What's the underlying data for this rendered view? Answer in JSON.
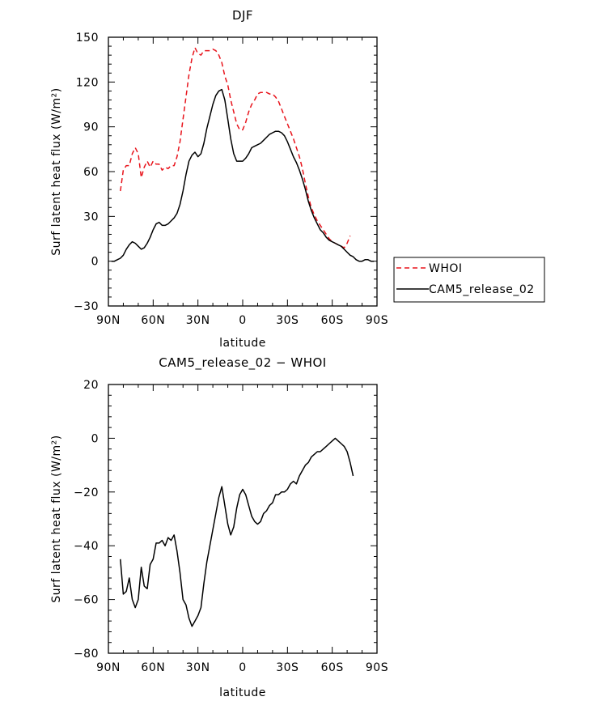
{
  "chart_data": [
    {
      "type": "line",
      "title": "DJF",
      "xlabel": "latitude",
      "ylabel": "Surf latent heat flux (W/m²)",
      "xlim": [
        90,
        -90
      ],
      "ylim": [
        -30,
        150
      ],
      "x_ticks": [
        {
          "value": 90,
          "label": "90N"
        },
        {
          "value": 60,
          "label": "60N"
        },
        {
          "value": 30,
          "label": "30N"
        },
        {
          "value": 0,
          "label": "0"
        },
        {
          "value": -30,
          "label": "30S"
        },
        {
          "value": -60,
          "label": "60S"
        },
        {
          "value": -90,
          "label": "90S"
        }
      ],
      "y_ticks": [
        -30,
        0,
        30,
        60,
        90,
        120,
        150
      ],
      "grid": false,
      "legend_position": "right",
      "series": [
        {
          "name": "WHOI",
          "color": "#e8141c",
          "dash": "dashed",
          "points": [
            [
              82,
              47
            ],
            [
              80,
              61
            ],
            [
              78,
              64
            ],
            [
              76,
              64
            ],
            [
              74,
              72
            ],
            [
              72,
              76
            ],
            [
              70,
              72
            ],
            [
              68,
              56
            ],
            [
              66,
              63
            ],
            [
              64,
              67
            ],
            [
              62,
              63
            ],
            [
              60,
              67
            ],
            [
              58,
              65
            ],
            [
              56,
              65
            ],
            [
              54,
              61
            ],
            [
              52,
              63
            ],
            [
              50,
              62
            ],
            [
              48,
              64
            ],
            [
              46,
              64
            ],
            [
              44,
              70
            ],
            [
              42,
              80
            ],
            [
              40,
              95
            ],
            [
              38,
              110
            ],
            [
              36,
              125
            ],
            [
              34,
              136
            ],
            [
              32,
              143
            ],
            [
              30,
              139
            ],
            [
              28,
              138
            ],
            [
              26,
              141
            ],
            [
              24,
              141
            ],
            [
              22,
              141
            ],
            [
              20,
              142
            ],
            [
              18,
              141
            ],
            [
              16,
              138
            ],
            [
              14,
              133
            ],
            [
              12,
              124
            ],
            [
              10,
              118
            ],
            [
              8,
              108
            ],
            [
              6,
              100
            ],
            [
              4,
              92
            ],
            [
              2,
              88
            ],
            [
              0,
              88
            ],
            [
              -2,
              93
            ],
            [
              -4,
              100
            ],
            [
              -6,
              105
            ],
            [
              -8,
              108
            ],
            [
              -10,
              112
            ],
            [
              -12,
              113
            ],
            [
              -14,
              113
            ],
            [
              -16,
              113
            ],
            [
              -18,
              112
            ],
            [
              -20,
              112
            ],
            [
              -22,
              110
            ],
            [
              -24,
              107
            ],
            [
              -26,
              102
            ],
            [
              -28,
              97
            ],
            [
              -30,
              92
            ],
            [
              -32,
              87
            ],
            [
              -34,
              82
            ],
            [
              -36,
              76
            ],
            [
              -38,
              70
            ],
            [
              -40,
              62
            ],
            [
              -42,
              52
            ],
            [
              -44,
              43
            ],
            [
              -46,
              36
            ],
            [
              -48,
              31
            ],
            [
              -50,
              27
            ],
            [
              -52,
              24
            ],
            [
              -54,
              21
            ],
            [
              -56,
              18
            ],
            [
              -58,
              15
            ],
            [
              -60,
              13
            ],
            [
              -62,
              12
            ],
            [
              -64,
              11
            ],
            [
              -66,
              10
            ],
            [
              -68,
              9
            ],
            [
              -70,
              12
            ],
            [
              -72,
              17
            ]
          ]
        },
        {
          "name": "CAM5_release_02",
          "color": "#000000",
          "dash": "solid",
          "points": [
            [
              88,
              0
            ],
            [
              86,
              0
            ],
            [
              84,
              1
            ],
            [
              82,
              2
            ],
            [
              80,
              4
            ],
            [
              78,
              8
            ],
            [
              76,
              11
            ],
            [
              74,
              13
            ],
            [
              72,
              12
            ],
            [
              70,
              10
            ],
            [
              68,
              8
            ],
            [
              66,
              9
            ],
            [
              64,
              12
            ],
            [
              62,
              16
            ],
            [
              60,
              21
            ],
            [
              58,
              25
            ],
            [
              56,
              26
            ],
            [
              54,
              24
            ],
            [
              52,
              24
            ],
            [
              50,
              25
            ],
            [
              48,
              27
            ],
            [
              46,
              29
            ],
            [
              44,
              32
            ],
            [
              42,
              38
            ],
            [
              40,
              47
            ],
            [
              38,
              58
            ],
            [
              36,
              67
            ],
            [
              34,
              71
            ],
            [
              32,
              73
            ],
            [
              30,
              70
            ],
            [
              28,
              72
            ],
            [
              26,
              79
            ],
            [
              24,
              89
            ],
            [
              22,
              97
            ],
            [
              20,
              105
            ],
            [
              18,
              111
            ],
            [
              16,
              114
            ],
            [
              14,
              115
            ],
            [
              12,
              108
            ],
            [
              10,
              95
            ],
            [
              8,
              82
            ],
            [
              6,
              72
            ],
            [
              4,
              67
            ],
            [
              2,
              67
            ],
            [
              0,
              67
            ],
            [
              -2,
              69
            ],
            [
              -4,
              72
            ],
            [
              -6,
              76
            ],
            [
              -8,
              77
            ],
            [
              -10,
              78
            ],
            [
              -12,
              79
            ],
            [
              -14,
              81
            ],
            [
              -16,
              83
            ],
            [
              -18,
              85
            ],
            [
              -20,
              86
            ],
            [
              -22,
              87
            ],
            [
              -24,
              87
            ],
            [
              -26,
              86
            ],
            [
              -28,
              84
            ],
            [
              -30,
              80
            ],
            [
              -32,
              75
            ],
            [
              -34,
              70
            ],
            [
              -36,
              66
            ],
            [
              -38,
              61
            ],
            [
              -40,
              55
            ],
            [
              -42,
              48
            ],
            [
              -44,
              40
            ],
            [
              -46,
              34
            ],
            [
              -48,
              29
            ],
            [
              -50,
              25
            ],
            [
              -52,
              21
            ],
            [
              -54,
              19
            ],
            [
              -56,
              16
            ],
            [
              -58,
              14
            ],
            [
              -60,
              13
            ],
            [
              -62,
              12
            ],
            [
              -64,
              11
            ],
            [
              -66,
              10
            ],
            [
              -68,
              8
            ],
            [
              -70,
              6
            ],
            [
              -72,
              4
            ],
            [
              -74,
              3
            ],
            [
              -76,
              1
            ],
            [
              -78,
              0
            ],
            [
              -80,
              0
            ],
            [
              -82,
              1
            ],
            [
              -84,
              1
            ],
            [
              -86,
              0
            ],
            [
              -88,
              0
            ]
          ]
        }
      ]
    },
    {
      "type": "line",
      "title": "CAM5_release_02 − WHOI",
      "xlabel": "latitude",
      "ylabel": "Surf latent heat flux (W/m²)",
      "xlim": [
        90,
        -90
      ],
      "ylim": [
        -80,
        20
      ],
      "x_ticks": [
        {
          "value": 90,
          "label": "90N"
        },
        {
          "value": 60,
          "label": "60N"
        },
        {
          "value": 30,
          "label": "30N"
        },
        {
          "value": 0,
          "label": "0"
        },
        {
          "value": -30,
          "label": "30S"
        },
        {
          "value": -60,
          "label": "60S"
        },
        {
          "value": -90,
          "label": "90S"
        }
      ],
      "y_ticks": [
        -80,
        -60,
        -40,
        -20,
        0,
        20
      ],
      "grid": false,
      "series": [
        {
          "color": "#000000",
          "dash": "solid",
          "points": [
            [
              82,
              -45
            ],
            [
              80,
              -58
            ],
            [
              78,
              -57
            ],
            [
              76,
              -52
            ],
            [
              74,
              -60
            ],
            [
              72,
              -63
            ],
            [
              70,
              -60
            ],
            [
              68,
              -48
            ],
            [
              66,
              -55
            ],
            [
              64,
              -56
            ],
            [
              62,
              -47
            ],
            [
              60,
              -45
            ],
            [
              58,
              -39
            ],
            [
              56,
              -39
            ],
            [
              54,
              -38
            ],
            [
              52,
              -40
            ],
            [
              50,
              -37
            ],
            [
              48,
              -38
            ],
            [
              46,
              -36
            ],
            [
              44,
              -42
            ],
            [
              42,
              -50
            ],
            [
              40,
              -60
            ],
            [
              38,
              -62
            ],
            [
              36,
              -67
            ],
            [
              34,
              -70
            ],
            [
              32,
              -68
            ],
            [
              30,
              -66
            ],
            [
              28,
              -63
            ],
            [
              26,
              -54
            ],
            [
              24,
              -46
            ],
            [
              22,
              -40
            ],
            [
              20,
              -34
            ],
            [
              18,
              -28
            ],
            [
              16,
              -22
            ],
            [
              14,
              -18
            ],
            [
              12,
              -25
            ],
            [
              10,
              -32
            ],
            [
              8,
              -36
            ],
            [
              6,
              -33
            ],
            [
              4,
              -26
            ],
            [
              2,
              -21
            ],
            [
              0,
              -19
            ],
            [
              -2,
              -21
            ],
            [
              -4,
              -25
            ],
            [
              -6,
              -29
            ],
            [
              -8,
              -31
            ],
            [
              -10,
              -32
            ],
            [
              -12,
              -31
            ],
            [
              -14,
              -28
            ],
            [
              -16,
              -27
            ],
            [
              -18,
              -25
            ],
            [
              -20,
              -24
            ],
            [
              -22,
              -21
            ],
            [
              -24,
              -21
            ],
            [
              -26,
              -20
            ],
            [
              -28,
              -20
            ],
            [
              -30,
              -19
            ],
            [
              -32,
              -17
            ],
            [
              -34,
              -16
            ],
            [
              -36,
              -17
            ],
            [
              -38,
              -14
            ],
            [
              -40,
              -12
            ],
            [
              -42,
              -10
            ],
            [
              -44,
              -9
            ],
            [
              -46,
              -7
            ],
            [
              -48,
              -6
            ],
            [
              -50,
              -5
            ],
            [
              -52,
              -5
            ],
            [
              -54,
              -4
            ],
            [
              -56,
              -3
            ],
            [
              -58,
              -2
            ],
            [
              -60,
              -1
            ],
            [
              -62,
              0
            ],
            [
              -64,
              -1
            ],
            [
              -66,
              -2
            ],
            [
              -68,
              -3
            ],
            [
              -70,
              -5
            ],
            [
              -72,
              -9
            ],
            [
              -74,
              -14
            ]
          ]
        }
      ]
    }
  ]
}
